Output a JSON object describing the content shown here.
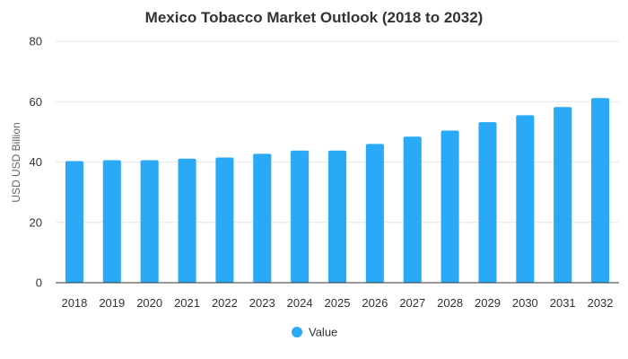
{
  "chart_data": {
    "type": "bar",
    "title": "Mexico Tobacco Market Outlook (2018 to 2032)",
    "xlabel": "",
    "ylabel": "USD USD Billion",
    "categories": [
      "2018",
      "2019",
      "2020",
      "2021",
      "2022",
      "2023",
      "2024",
      "2025",
      "2026",
      "2027",
      "2028",
      "2029",
      "2030",
      "2031",
      "2032"
    ],
    "series": [
      {
        "name": "Value",
        "color": "#2aaaf6",
        "values": [
          40.3,
          40.6,
          40.6,
          41.1,
          41.5,
          42.7,
          43.8,
          43.8,
          46.0,
          48.4,
          50.4,
          53.2,
          55.5,
          58.2,
          61.2
        ]
      }
    ],
    "ylim": [
      0,
      80
    ],
    "yticks": [
      0,
      20,
      40,
      60,
      80
    ],
    "grid": true,
    "legend": "bottom-center"
  }
}
